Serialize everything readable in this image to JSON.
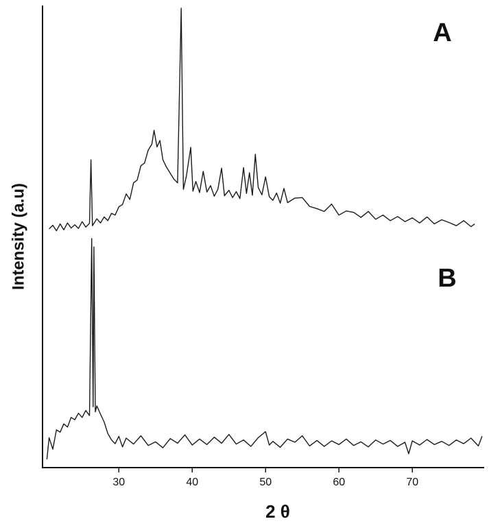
{
  "chart_data": {
    "type": "line",
    "xlabel": "2 θ",
    "ylabel": "Intensity (a.u)",
    "annotations": [
      "A",
      "B"
    ],
    "xlim": [
      19.6,
      79.7
    ],
    "xticks": [
      30,
      40,
      50,
      60,
      70
    ],
    "ylim": [
      0,
      100
    ],
    "series": [
      {
        "name": "A",
        "color": "#1a1a1a",
        "x": [
          20.5,
          21,
          21.5,
          22,
          22.5,
          23,
          23.5,
          24,
          24.5,
          25,
          25.5,
          26,
          26.2,
          26.4,
          27,
          27.5,
          28,
          28.5,
          29,
          29.5,
          30,
          30.5,
          31,
          31.5,
          32,
          32.5,
          33,
          33.5,
          34,
          34.5,
          34.8,
          35.2,
          35.6,
          36,
          36.5,
          37,
          37.5,
          38,
          38.5,
          38.8,
          39.2,
          39.8,
          40.1,
          40.5,
          41,
          41.5,
          42,
          42.5,
          43,
          43.5,
          44,
          44.4,
          45,
          45.5,
          46,
          46.5,
          47,
          47.4,
          47.8,
          48.2,
          48.6,
          49,
          49.5,
          50,
          50.5,
          51,
          51.5,
          52,
          52.5,
          53,
          54,
          55,
          56,
          57,
          58,
          59,
          60,
          61,
          62,
          63,
          64,
          65,
          66,
          67,
          68,
          69,
          70,
          71,
          72,
          73,
          74,
          75,
          76,
          77,
          78,
          78.5
        ],
        "values": [
          51.8,
          52.6,
          51.4,
          52.9,
          51.6,
          53.1,
          52.0,
          52.7,
          51.9,
          53.4,
          52.2,
          53.0,
          66.8,
          52.5,
          54.0,
          53.1,
          54.4,
          53.6,
          55.2,
          54.8,
          56.6,
          57.1,
          59.4,
          58.2,
          61.8,
          62.4,
          65.5,
          66.1,
          68.9,
          70.2,
          73.2,
          69.6,
          71.0,
          66.8,
          65.2,
          63.9,
          62.6,
          61.8,
          99.7,
          60.4,
          63.2,
          69.5,
          60.0,
          62.1,
          59.7,
          64.3,
          59.8,
          61.2,
          58.9,
          60.4,
          65.0,
          59.0,
          60.2,
          58.6,
          59.9,
          58.4,
          65.1,
          59.5,
          64.0,
          59.1,
          68.0,
          60.8,
          59.2,
          63.1,
          58.8,
          58.0,
          59.6,
          57.4,
          60.6,
          57.5,
          58.5,
          58.6,
          56.7,
          56.2,
          55.6,
          57.2,
          54.8,
          55.7,
          55.4,
          54.3,
          55.6,
          53.9,
          54.8,
          53.6,
          54.5,
          53.4,
          54.2,
          53.1,
          54.4,
          52.9,
          53.8,
          53.2,
          52.5,
          53.6,
          52.3,
          52.9
        ]
      },
      {
        "name": "B",
        "color": "#1a1a1a",
        "x": [
          20.2,
          20.5,
          21,
          21.5,
          22,
          22.5,
          23,
          23.5,
          24,
          24.5,
          25,
          25.5,
          26,
          26.3,
          26.5,
          26.6,
          26.8,
          27,
          27.5,
          28,
          28.5,
          29,
          29.5,
          30,
          30.5,
          31,
          32,
          33,
          34,
          35,
          36,
          37,
          38,
          39,
          40,
          41,
          42,
          43,
          44,
          45,
          46,
          47,
          48,
          49,
          50,
          50.5,
          51,
          52,
          53,
          54,
          55,
          56,
          57,
          58,
          59,
          60,
          61,
          62,
          63,
          64,
          65,
          66,
          67,
          68,
          69,
          69.5,
          70,
          71,
          72,
          73,
          74,
          75,
          76,
          77,
          78,
          79,
          79.5
        ],
        "values": [
          1.8,
          6.5,
          4.0,
          8.2,
          7.7,
          9.5,
          8.8,
          10.9,
          10.4,
          11.8,
          10.9,
          12.4,
          11.3,
          49.7,
          13.2,
          47.9,
          12.1,
          13.4,
          11.6,
          9.9,
          7.4,
          6.0,
          5.2,
          6.8,
          4.5,
          6.4,
          5.1,
          6.9,
          4.8,
          5.6,
          4.3,
          6.3,
          5.3,
          7.1,
          4.9,
          6.2,
          5.0,
          6.6,
          5.3,
          7.2,
          5.1,
          6.0,
          4.6,
          6.5,
          7.8,
          4.9,
          5.7,
          4.4,
          6.2,
          5.5,
          6.9,
          4.7,
          5.9,
          4.6,
          5.8,
          5.0,
          6.2,
          4.8,
          5.6,
          4.5,
          6.0,
          5.1,
          5.9,
          4.6,
          5.5,
          3.0,
          5.8,
          4.9,
          6.1,
          5.0,
          5.7,
          4.8,
          6.0,
          5.2,
          6.4,
          4.7,
          6.8
        ]
      }
    ]
  }
}
